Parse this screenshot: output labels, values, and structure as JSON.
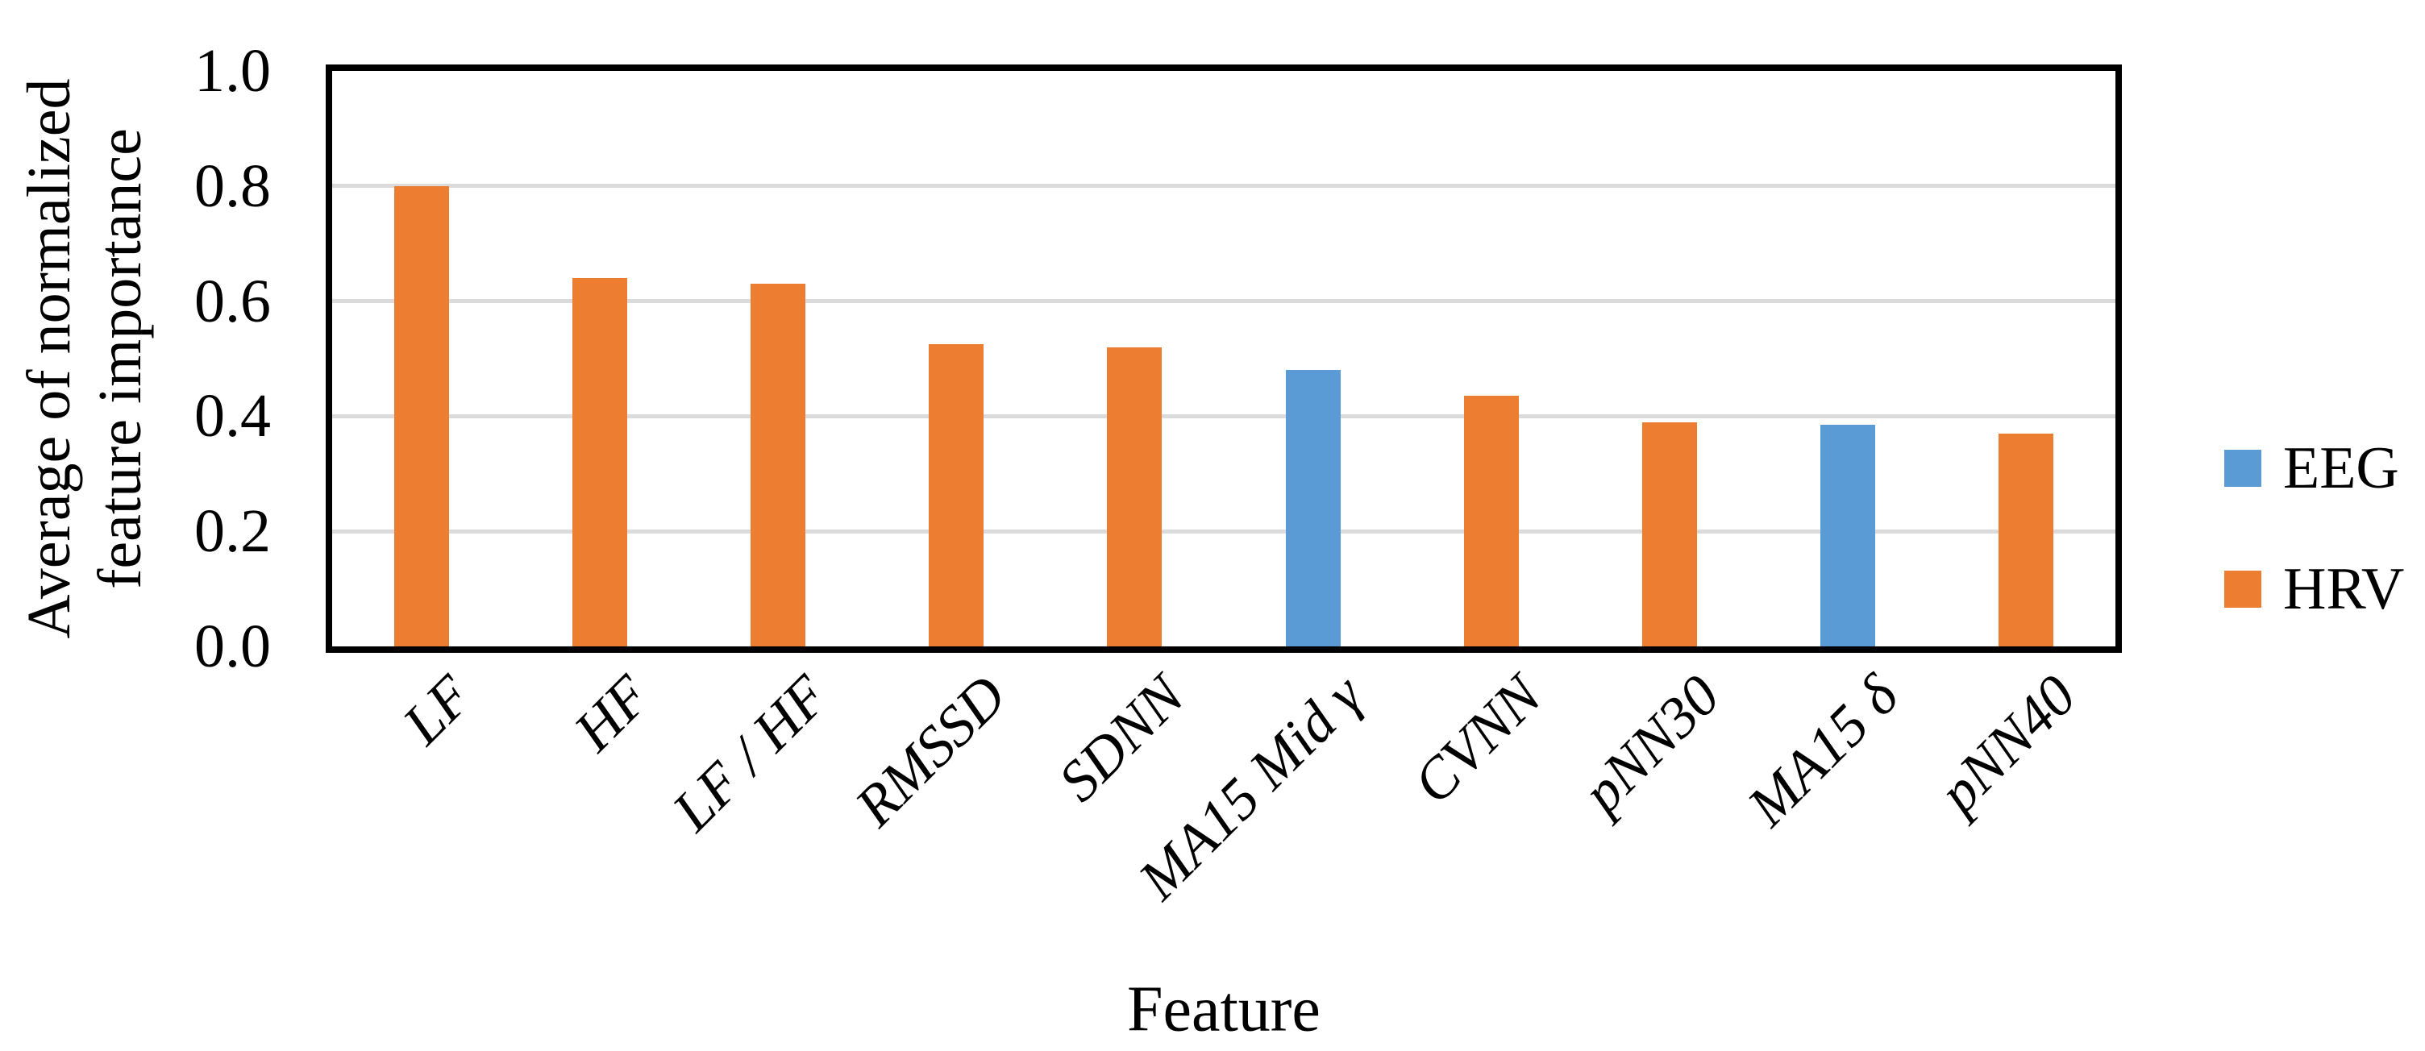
{
  "figure": {
    "y_axis": {
      "title_line1": "Average of normalized",
      "title_line2": "feature importance",
      "ticks": [
        "1.0",
        "0.8",
        "0.6",
        "0.4",
        "0.2",
        "0.0"
      ]
    },
    "x_axis": {
      "title": "Feature"
    },
    "legend": {
      "items": [
        {
          "label": "EEG",
          "color": "#5B9BD5"
        },
        {
          "label": "HRV",
          "color": "#ED7D31"
        }
      ]
    }
  },
  "chart_data": {
    "type": "bar",
    "title": "",
    "xlabel": "Feature",
    "ylabel": "Average of normalized feature importance",
    "ylim": [
      0.0,
      1.0
    ],
    "ytick_interval": 0.2,
    "ytick_labels": [
      "1.0",
      "0.8",
      "0.6",
      "0.4",
      "0.2",
      "0.0"
    ],
    "grid": true,
    "grid_color": "#DBDBDB",
    "frame_color": "#000000",
    "legend_position": "right-middle",
    "categories": [
      "LF",
      "HF",
      "LF / HF",
      "RMSSD",
      "SDNN",
      "MA15 Mid γ",
      "CVNN",
      "pNN30",
      "MA15 δ",
      "pNN40"
    ],
    "values": [
      0.8,
      0.64,
      0.63,
      0.525,
      0.52,
      0.48,
      0.435,
      0.39,
      0.385,
      0.37
    ],
    "groups": [
      "HRV",
      "HRV",
      "HRV",
      "HRV",
      "HRV",
      "EEG",
      "HRV",
      "HRV",
      "EEG",
      "HRV"
    ],
    "series": [
      {
        "name": "EEG",
        "color": "#5B9BD5",
        "values": [
          null,
          null,
          null,
          null,
          null,
          0.48,
          null,
          null,
          0.385,
          null
        ]
      },
      {
        "name": "HRV",
        "color": "#ED7D31",
        "values": [
          0.8,
          0.64,
          0.63,
          0.525,
          0.52,
          null,
          0.435,
          0.39,
          null,
          0.37
        ]
      }
    ]
  }
}
